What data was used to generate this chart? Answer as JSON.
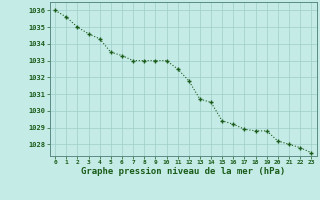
{
  "x": [
    0,
    1,
    2,
    3,
    4,
    5,
    6,
    7,
    8,
    9,
    10,
    11,
    12,
    13,
    14,
    15,
    16,
    17,
    18,
    19,
    20,
    21,
    22,
    23
  ],
  "y": [
    1036.0,
    1035.6,
    1035.0,
    1034.6,
    1034.3,
    1033.5,
    1033.3,
    1033.0,
    1033.0,
    1033.0,
    1033.0,
    1032.5,
    1031.8,
    1030.7,
    1030.5,
    1029.4,
    1029.2,
    1028.9,
    1028.8,
    1028.8,
    1028.2,
    1028.0,
    1027.8,
    1027.5
  ],
  "line_color": "#1a5c1a",
  "marker": "+",
  "bg_color": "#c5ebe6",
  "grid_color": "#9ecdc7",
  "xlabel": "Graphe pression niveau de la mer (hPa)",
  "ylim": [
    1027.3,
    1036.5
  ],
  "yticks": [
    1028,
    1029,
    1030,
    1031,
    1032,
    1033,
    1034,
    1035,
    1036
  ],
  "xticks": [
    0,
    1,
    2,
    3,
    4,
    5,
    6,
    7,
    8,
    9,
    10,
    11,
    12,
    13,
    14,
    15,
    16,
    17,
    18,
    19,
    20,
    21,
    22,
    23
  ],
  "xlabel_color": "#1a5c1a",
  "tick_color": "#1a5c1a",
  "axis_color": "#5a8a84"
}
